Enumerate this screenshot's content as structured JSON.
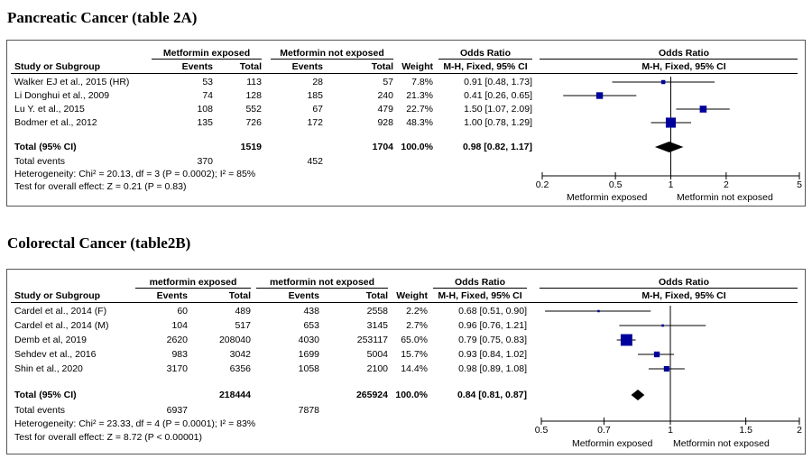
{
  "panels": [
    {
      "title": "Pancreatic Cancer (table 2A)",
      "group_exposed": "Metformin exposed",
      "group_not_exposed": "Metformin not exposed",
      "headers": {
        "study": "Study or Subgroup",
        "events1": "Events",
        "total1": "Total",
        "events2": "Events",
        "total2": "Total",
        "weight": "Weight",
        "or_title": "Odds Ratio",
        "or_method": "M-H, Fixed, 95% CI",
        "plot_title": "Odds Ratio",
        "plot_method": "M-H, Fixed, 95% CI"
      },
      "studies": [
        {
          "name": "Walker EJ et al., 2015 (HR)",
          "events1": "53",
          "total1": "113",
          "events2": "28",
          "total2": "57",
          "weight": "7.8%",
          "ci_text": "0.91 [0.48, 1.73]",
          "or": 0.91,
          "lo": 0.48,
          "hi": 1.73,
          "w": 7.8
        },
        {
          "name": "Li Donghui et al., 2009",
          "events1": "74",
          "total1": "128",
          "events2": "185",
          "total2": "240",
          "weight": "21.3%",
          "ci_text": "0.41 [0.26, 0.65]",
          "or": 0.41,
          "lo": 0.26,
          "hi": 0.65,
          "w": 21.3
        },
        {
          "name": "Lu Y. et al., 2015",
          "events1": "108",
          "total1": "552",
          "events2": "67",
          "total2": "479",
          "weight": "22.7%",
          "ci_text": "1.50 [1.07, 2.09]",
          "or": 1.5,
          "lo": 1.07,
          "hi": 2.09,
          "w": 22.7
        },
        {
          "name": "Bodmer et al., 2012",
          "events1": "135",
          "total1": "726",
          "events2": "172",
          "total2": "928",
          "weight": "48.3%",
          "ci_text": "1.00 [0.78, 1.29]",
          "or": 1.0,
          "lo": 0.78,
          "hi": 1.29,
          "w": 48.3
        }
      ],
      "total": {
        "label": "Total (95% CI)",
        "total1": "1519",
        "total2": "1704",
        "weight": "100.0%",
        "ci_text": "0.98 [0.82, 1.17]",
        "or": 0.98,
        "lo": 0.82,
        "hi": 1.17
      },
      "total_events": {
        "label": "Total events",
        "events1": "370",
        "events2": "452"
      },
      "heterogeneity": "Heterogeneity: Chi² = 20.13, df = 3 (P = 0.0002); I² = 85%",
      "overall_effect": "Test for overall effect: Z = 0.21 (P = 0.83)",
      "axis": {
        "ticks": [
          0.2,
          0.5,
          1,
          2,
          5
        ],
        "tick_labels": [
          "0.2",
          "0.5",
          "1",
          "2",
          "5"
        ],
        "min": 0.2,
        "max": 5,
        "left_label": "Metformin exposed",
        "right_label": "Metformin not exposed"
      }
    },
    {
      "title": "Colorectal Cancer (table2B)",
      "group_exposed": "metformin exposed",
      "group_not_exposed": "metformin not exposed",
      "headers": {
        "study": "Study or Subgroup",
        "events1": "Events",
        "total1": "Total",
        "events2": "Events",
        "total2": "Total",
        "weight": "Weight",
        "or_title": "Odds Ratio",
        "or_method": "M-H, Fixed, 95% CI",
        "plot_title": "Odds Ratio",
        "plot_method": "M-H, Fixed, 95% CI"
      },
      "studies": [
        {
          "name": "Cardel et al., 2014 (F)",
          "events1": "60",
          "total1": "489",
          "events2": "438",
          "total2": "2558",
          "weight": "2.2%",
          "ci_text": "0.68 [0.51, 0.90]",
          "or": 0.68,
          "lo": 0.51,
          "hi": 0.9,
          "w": 2.2
        },
        {
          "name": "Cardel et al., 2014 (M)",
          "events1": "104",
          "total1": "517",
          "events2": "653",
          "total2": "3145",
          "weight": "2.7%",
          "ci_text": "0.96 [0.76, 1.21]",
          "or": 0.96,
          "lo": 0.76,
          "hi": 1.21,
          "w": 2.7
        },
        {
          "name": "Demb et al, 2019",
          "events1": "2620",
          "total1": "208040",
          "events2": "4030",
          "total2": "253117",
          "weight": "65.0%",
          "ci_text": "0.79 [0.75, 0.83]",
          "or": 0.79,
          "lo": 0.75,
          "hi": 0.83,
          "w": 65.0
        },
        {
          "name": "Sehdev et al., 2016",
          "events1": "983",
          "total1": "3042",
          "events2": "1699",
          "total2": "5004",
          "weight": "15.7%",
          "ci_text": "0.93 [0.84, 1.02]",
          "or": 0.93,
          "lo": 0.84,
          "hi": 1.02,
          "w": 15.7
        },
        {
          "name": "Shin et al., 2020",
          "events1": "3170",
          "total1": "6356",
          "events2": "1058",
          "total2": "2100",
          "weight": "14.4%",
          "ci_text": "0.98 [0.89, 1.08]",
          "or": 0.98,
          "lo": 0.89,
          "hi": 1.08,
          "w": 14.4
        }
      ],
      "total": {
        "label": "Total (95% CI)",
        "total1": "218444",
        "total2": "265924",
        "weight": "100.0%",
        "ci_text": "0.84 [0.81, 0.87]",
        "or": 0.84,
        "lo": 0.81,
        "hi": 0.87
      },
      "total_events": {
        "label": "Total events",
        "events1": "6937",
        "events2": "7878"
      },
      "heterogeneity": "Heterogeneity: Chi² = 23.33, df = 4 (P = 0.0001); I² = 83%",
      "overall_effect": "Test for overall effect: Z = 8.72 (P < 0.00001)",
      "axis": {
        "ticks": [
          0.5,
          0.7,
          1,
          1.5,
          2
        ],
        "tick_labels": [
          "0.5",
          "0.7",
          "1",
          "1.5",
          "2"
        ],
        "min": 0.5,
        "max": 2,
        "left_label": "Metformin exposed",
        "right_label": "Metformin not exposed"
      }
    }
  ],
  "colors": {
    "marker": "#00009c",
    "line": "#000000"
  }
}
